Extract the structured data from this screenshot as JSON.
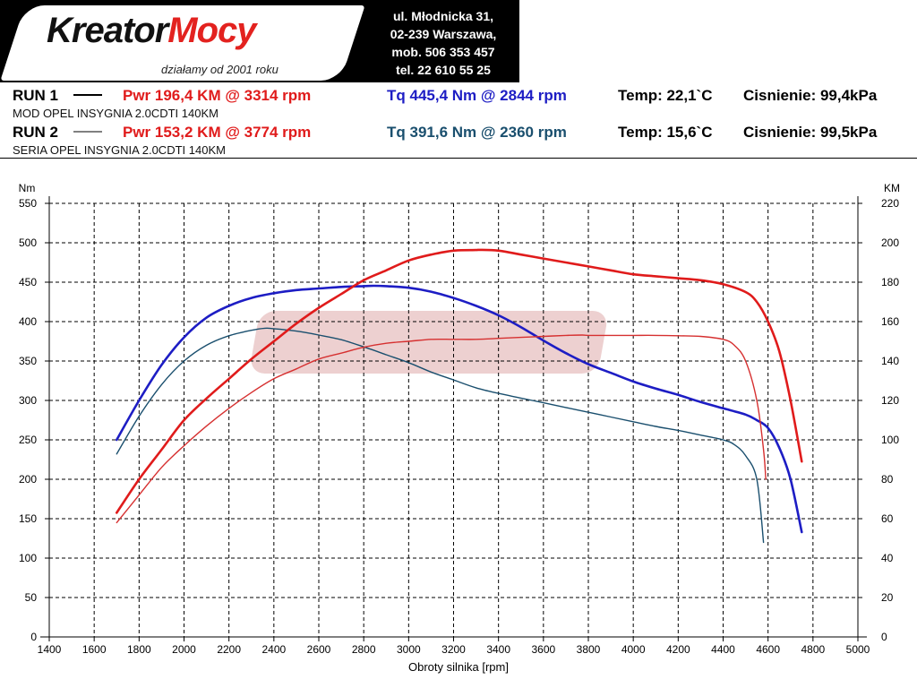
{
  "header": {
    "logo_main": "Kreator",
    "logo_accent": "Mocy",
    "tagline": "działamy od 2001 roku",
    "contact": [
      "ul. Młodnicka 31,",
      "02-239 Warszawa,",
      "mob. 506 353 457",
      "tel. 22 610 55 25"
    ]
  },
  "runs": [
    {
      "label": "RUN 1",
      "pwr": "Pwr 196,4 KM @ 3314 rpm",
      "tq": "Tq 445,4 Nm @ 2844 rpm",
      "temp": "Temp: 22,1`C",
      "pressure": "Cisnienie: 99,4kPa",
      "desc": "MOD OPEL INSYGNIA 2.0CDTI 140KM"
    },
    {
      "label": "RUN 2",
      "pwr": "Pwr 153,2 KM @ 3774 rpm",
      "tq": "Tq 391,6 Nm @ 2360 rpm",
      "temp": "Temp: 15,6`C",
      "pressure": "Cisnienie: 99,5kPa",
      "desc": "SERIA OPEL INSYGNIA 2.0CDTI 140KM"
    }
  ],
  "colors": {
    "run1_power": "#e01b1b",
    "run2_power": "#d63030",
    "run1_torque": "#1d1dc4",
    "run2_torque": "#1a4f6e",
    "pwr_text": "#e01b1b",
    "tq1_text": "#1d1dc4",
    "tq2_text": "#1a4f6e"
  },
  "chart_data": {
    "type": "line",
    "xlabel": "Obroty silnika [rpm]",
    "ylabel_left": "Nm",
    "ylabel_right": "KM",
    "xlim": [
      1400,
      5000
    ],
    "ylim_left": [
      0,
      550
    ],
    "ylim_right": [
      0,
      220
    ],
    "x_ticks": [
      1400,
      1600,
      1800,
      2000,
      2200,
      2400,
      2600,
      2800,
      3000,
      3200,
      3400,
      3600,
      3800,
      4000,
      4200,
      4400,
      4600,
      4800,
      5000
    ],
    "y_ticks_left": [
      0,
      50,
      100,
      150,
      200,
      250,
      300,
      350,
      400,
      450,
      500,
      550
    ],
    "y_ticks_right": [
      0,
      20,
      40,
      60,
      80,
      100,
      120,
      140,
      160,
      180,
      200,
      220
    ],
    "grid": true,
    "series": [
      {
        "axis": "left",
        "x": [
          1700,
          1800,
          1900,
          2000,
          2100,
          2200,
          2300,
          2400,
          2500,
          2600,
          2700,
          2800,
          2844,
          2900,
          3000,
          3100,
          3200,
          3300,
          3400,
          3500,
          3600,
          3700,
          3800,
          3900,
          4000,
          4100,
          4200,
          4300,
          4400,
          4500,
          4550,
          4600,
          4650,
          4700,
          4750
        ],
        "y": [
          250,
          300,
          345,
          380,
          405,
          420,
          430,
          436,
          440,
          442,
          444,
          445,
          445.4,
          445,
          443,
          438,
          430,
          420,
          408,
          393,
          376,
          360,
          346,
          335,
          324,
          315,
          307,
          298,
          290,
          282,
          275,
          265,
          240,
          200,
          133
        ]
      },
      {
        "axis": "left",
        "x": [
          1700,
          1800,
          1900,
          2000,
          2100,
          2200,
          2300,
          2360,
          2400,
          2500,
          2600,
          2700,
          2800,
          2900,
          3000,
          3100,
          3200,
          3300,
          3400,
          3500,
          3600,
          3700,
          3800,
          3900,
          4000,
          4100,
          4200,
          4300,
          4400,
          4450,
          4500,
          4550,
          4580
        ],
        "y": [
          232,
          280,
          320,
          350,
          370,
          382,
          389,
          391.6,
          391,
          388,
          383,
          377,
          368,
          358,
          348,
          336,
          326,
          316,
          309,
          303,
          297,
          291,
          285,
          279,
          273,
          267,
          262,
          256,
          250,
          244,
          230,
          200,
          120
        ]
      },
      {
        "axis": "right",
        "x": [
          1700,
          1800,
          1900,
          2000,
          2100,
          2200,
          2300,
          2400,
          2500,
          2600,
          2700,
          2800,
          2900,
          3000,
          3100,
          3200,
          3300,
          3314,
          3400,
          3500,
          3600,
          3700,
          3800,
          3900,
          4000,
          4100,
          4200,
          4300,
          4400,
          4500,
          4550,
          4600,
          4650,
          4700,
          4750
        ],
        "y": [
          63,
          80,
          95,
          110,
          121,
          131,
          141,
          150,
          159,
          167,
          174,
          181,
          186,
          191,
          194,
          196,
          196.3,
          196.4,
          196,
          194,
          192,
          190,
          188,
          186,
          184,
          183,
          182,
          181,
          179,
          175,
          170,
          160,
          145,
          120,
          89
        ]
      },
      {
        "axis": "right",
        "x": [
          1700,
          1800,
          1900,
          2000,
          2100,
          2200,
          2300,
          2400,
          2500,
          2600,
          2700,
          2800,
          2900,
          3000,
          3100,
          3200,
          3300,
          3400,
          3500,
          3600,
          3700,
          3774,
          3800,
          3900,
          4000,
          4100,
          4200,
          4300,
          4400,
          4450,
          4500,
          4550,
          4580,
          4590
        ],
        "y": [
          58,
          72,
          86,
          97,
          107,
          116,
          124,
          131,
          136,
          141,
          144,
          147,
          149,
          150,
          151,
          151,
          151,
          151.5,
          152,
          152.5,
          153,
          153.2,
          153,
          153,
          153,
          153,
          152.8,
          152.5,
          151,
          148,
          140,
          120,
          95,
          80
        ]
      }
    ]
  }
}
